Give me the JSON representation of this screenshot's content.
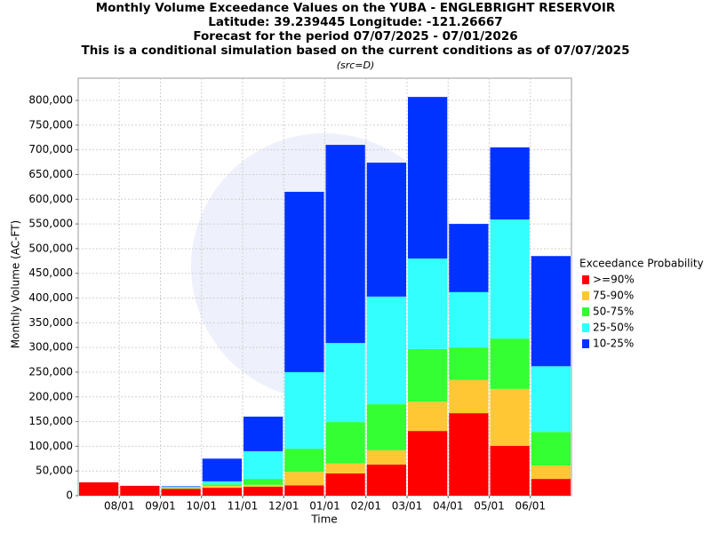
{
  "chart_data": {
    "type": "stacked_bar",
    "title": [
      "Monthly Volume Exceedance Values on the YUBA - ENGLEBRIGHT RESERVOIR",
      "Latitude: 39.239445 Longitude: -121.26667",
      "Forecast for the period 07/07/2025 - 07/01/2026",
      "This is a conditional simulation based on the current conditions as of 07/07/2025"
    ],
    "subtitle": "(src=D)",
    "x_label": "Time",
    "y_label": "Monthly Volume (AC-FT)",
    "xticks": [
      "08/01",
      "09/01",
      "10/01",
      "11/01",
      "12/01",
      "01/01",
      "02/01",
      "03/01",
      "04/01",
      "05/01",
      "06/01"
    ],
    "legend_title": "Exceedance Probability",
    "legend_position": "right",
    "grid": true,
    "ylim": [
      0,
      845000
    ],
    "yticks": [
      0,
      {
        "value": 50000,
        "label": "50,000"
      },
      {
        "value": 100000,
        "label": "100,000"
      },
      {
        "value": 150000,
        "label": "150,000"
      },
      {
        "value": 200000,
        "label": "200,000"
      },
      {
        "value": 250000,
        "label": "250,000"
      },
      {
        "value": 300000,
        "label": "300,000"
      },
      {
        "value": 350000,
        "label": "350,000"
      },
      {
        "value": 400000,
        "label": "400,000"
      },
      {
        "value": 450000,
        "label": "450,000"
      },
      {
        "value": 500000,
        "label": "500,000"
      },
      {
        "value": 550000,
        "label": "550,000"
      },
      {
        "value": 600000,
        "label": "600,000"
      },
      {
        "value": 650000,
        "label": "650,000"
      },
      {
        "value": 700000,
        "label": "700,000"
      },
      {
        "value": 750000,
        "label": "750,000"
      },
      {
        "value": 800000,
        "label": "800,000"
      }
    ],
    "series": [
      {
        "name": ">=90%",
        "color": "#ff0000",
        "values": [
          27000,
          20000,
          14000,
          16000,
          18000,
          21000,
          45000,
          63000,
          131000,
          167000,
          101000,
          34000
        ]
      },
      {
        "name": "75-90%",
        "color": "#ffc733",
        "values": [
          0,
          0,
          1000,
          4000,
          4000,
          27000,
          20000,
          29000,
          59000,
          67000,
          115000,
          27000
        ]
      },
      {
        "name": "50-75%",
        "color": "#33ff33",
        "values": [
          0,
          0,
          1000,
          3000,
          12000,
          47000,
          84000,
          93000,
          107000,
          66000,
          102000,
          68000
        ]
      },
      {
        "name": "25-50%",
        "color": "#33ffff",
        "values": [
          0,
          0,
          2000,
          6000,
          56000,
          155000,
          160000,
          218000,
          183000,
          112000,
          241000,
          133000
        ]
      },
      {
        "name": "10-25%",
        "color": "#0033ff",
        "values": [
          0,
          0,
          1000,
          46000,
          70000,
          365000,
          401000,
          271000,
          327000,
          138000,
          146000,
          223000
        ]
      }
    ]
  }
}
